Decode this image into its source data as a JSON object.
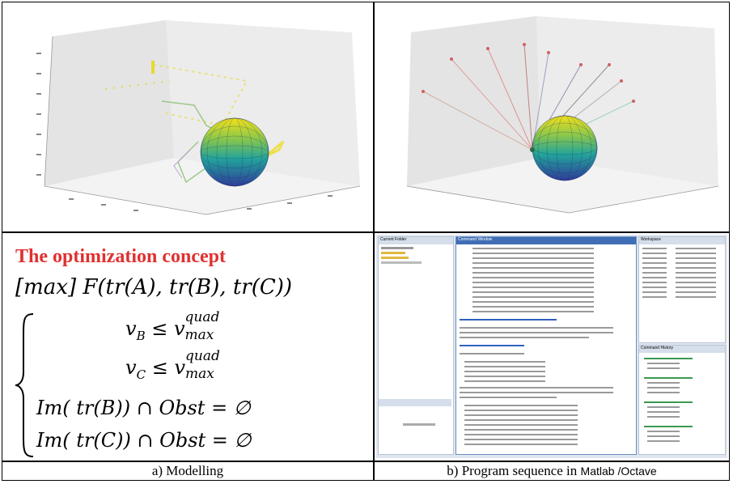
{
  "panels": {
    "top_left": {
      "description": ""
    },
    "top_right": {
      "description": ""
    }
  },
  "concept": {
    "title": "The optimization concept",
    "objective": "[max] F(tr(A), tr(B), tr(C))",
    "constraints": [
      {
        "lhs": "v",
        "sub": "B",
        "rel": "≤",
        "rhs": "v",
        "rsub": "max",
        "rsup": "quad"
      },
      {
        "lhs": "v",
        "sub": "C",
        "rel": "≤",
        "rhs": "v",
        "rsub": "max",
        "rsup": "quad"
      },
      {
        "text": "Im( tr(B)) ∩ Obst = ∅"
      },
      {
        "text": "Im( tr(C)) ∩ Obst = ∅"
      }
    ]
  },
  "captions": {
    "a": "a) Modelling",
    "b_main": "b) Program sequence in ",
    "b_tool": "Matlab /Octave"
  },
  "matlab": {
    "left_panel_title": "Current Folder",
    "center_panel_title": "Command Window",
    "right_panel_title": "Workspace",
    "history_title": "Command History",
    "center_msg": "Local minimum possible. Constraints satisfied."
  },
  "colors": {
    "title_red": "#e03030",
    "sphere_top": "#f2e01a",
    "sphere_bottom": "#2f3c9a"
  }
}
